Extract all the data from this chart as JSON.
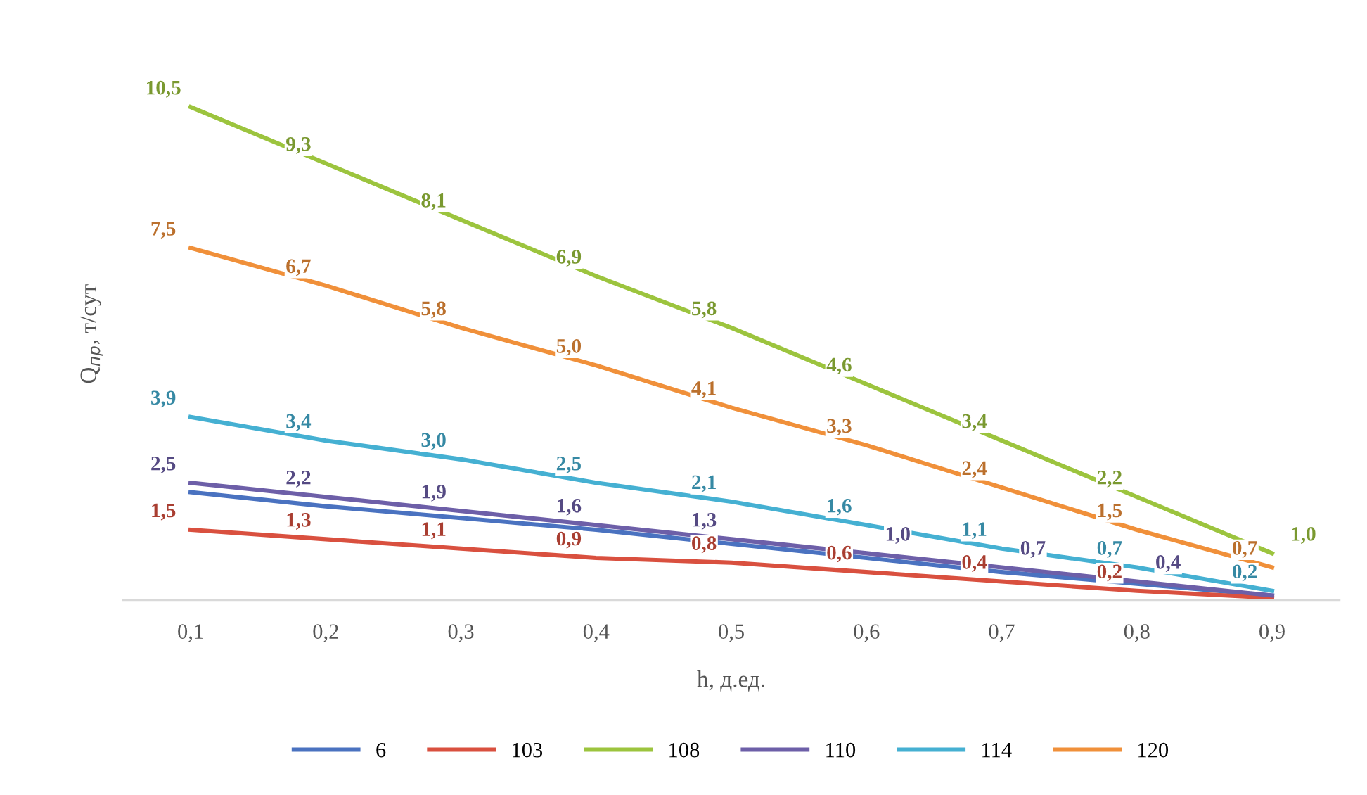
{
  "chart_data": {
    "type": "line",
    "xlabel": "h, д.ед.",
    "ylabel": "Q$_{пр}$, т/сут",
    "categories": [
      "0,1",
      "0,2",
      "0,3",
      "0,4",
      "0,5",
      "0,6",
      "0,7",
      "0,8",
      "0,9"
    ],
    "series": [
      {
        "name": "6",
        "color": "#4a72c0",
        "values": [
          2.3,
          2.0,
          1.75,
          1.5,
          1.2,
          0.9,
          0.6,
          0.35,
          0.1
        ]
      },
      {
        "name": "103",
        "color": "#d9503f",
        "values": [
          1.5,
          1.3,
          1.1,
          0.9,
          0.8,
          0.6,
          0.4,
          0.2,
          0.05
        ],
        "value_labels": [
          "1,5",
          "1,3",
          "1,1",
          "0,9",
          "0,8",
          "0,6",
          "0,4",
          "0,2",
          null
        ]
      },
      {
        "name": "108",
        "color": "#9cc43e",
        "values": [
          10.5,
          9.3,
          8.1,
          6.9,
          5.8,
          4.6,
          3.4,
          2.2,
          1.0
        ],
        "value_labels": [
          "10,5",
          "9,3",
          "8,1",
          "6,9",
          "5,8",
          "4,6",
          "3,4",
          "2,2",
          "1,0"
        ]
      },
      {
        "name": "110",
        "color": "#6d5fa8",
        "values": [
          2.5,
          2.2,
          1.9,
          1.6,
          1.3,
          1.0,
          0.7,
          0.4,
          0.1
        ],
        "value_labels": [
          "2,5",
          "2,2",
          "1,9",
          "1,6",
          "1,3",
          "1,0",
          "0,7",
          "0,4",
          null
        ]
      },
      {
        "name": "114",
        "color": "#45b0d2",
        "values": [
          3.9,
          3.4,
          3.0,
          2.5,
          2.1,
          1.6,
          1.1,
          0.7,
          0.2
        ],
        "value_labels": [
          "3,9",
          "3,4",
          "3,0",
          "2,5",
          "2,1",
          "1,6",
          "1,1",
          "0,7",
          "0,2"
        ]
      },
      {
        "name": "120",
        "color": "#f0903a",
        "values": [
          7.5,
          6.7,
          5.8,
          5.0,
          4.1,
          3.3,
          2.4,
          1.5,
          0.7
        ],
        "value_labels": [
          "7,5",
          "6,7",
          "5,8",
          "5,0",
          "4,1",
          "3,3",
          "2,4",
          "1,5",
          "0,7"
        ]
      }
    ],
    "legend": "bottom",
    "grid": false
  }
}
